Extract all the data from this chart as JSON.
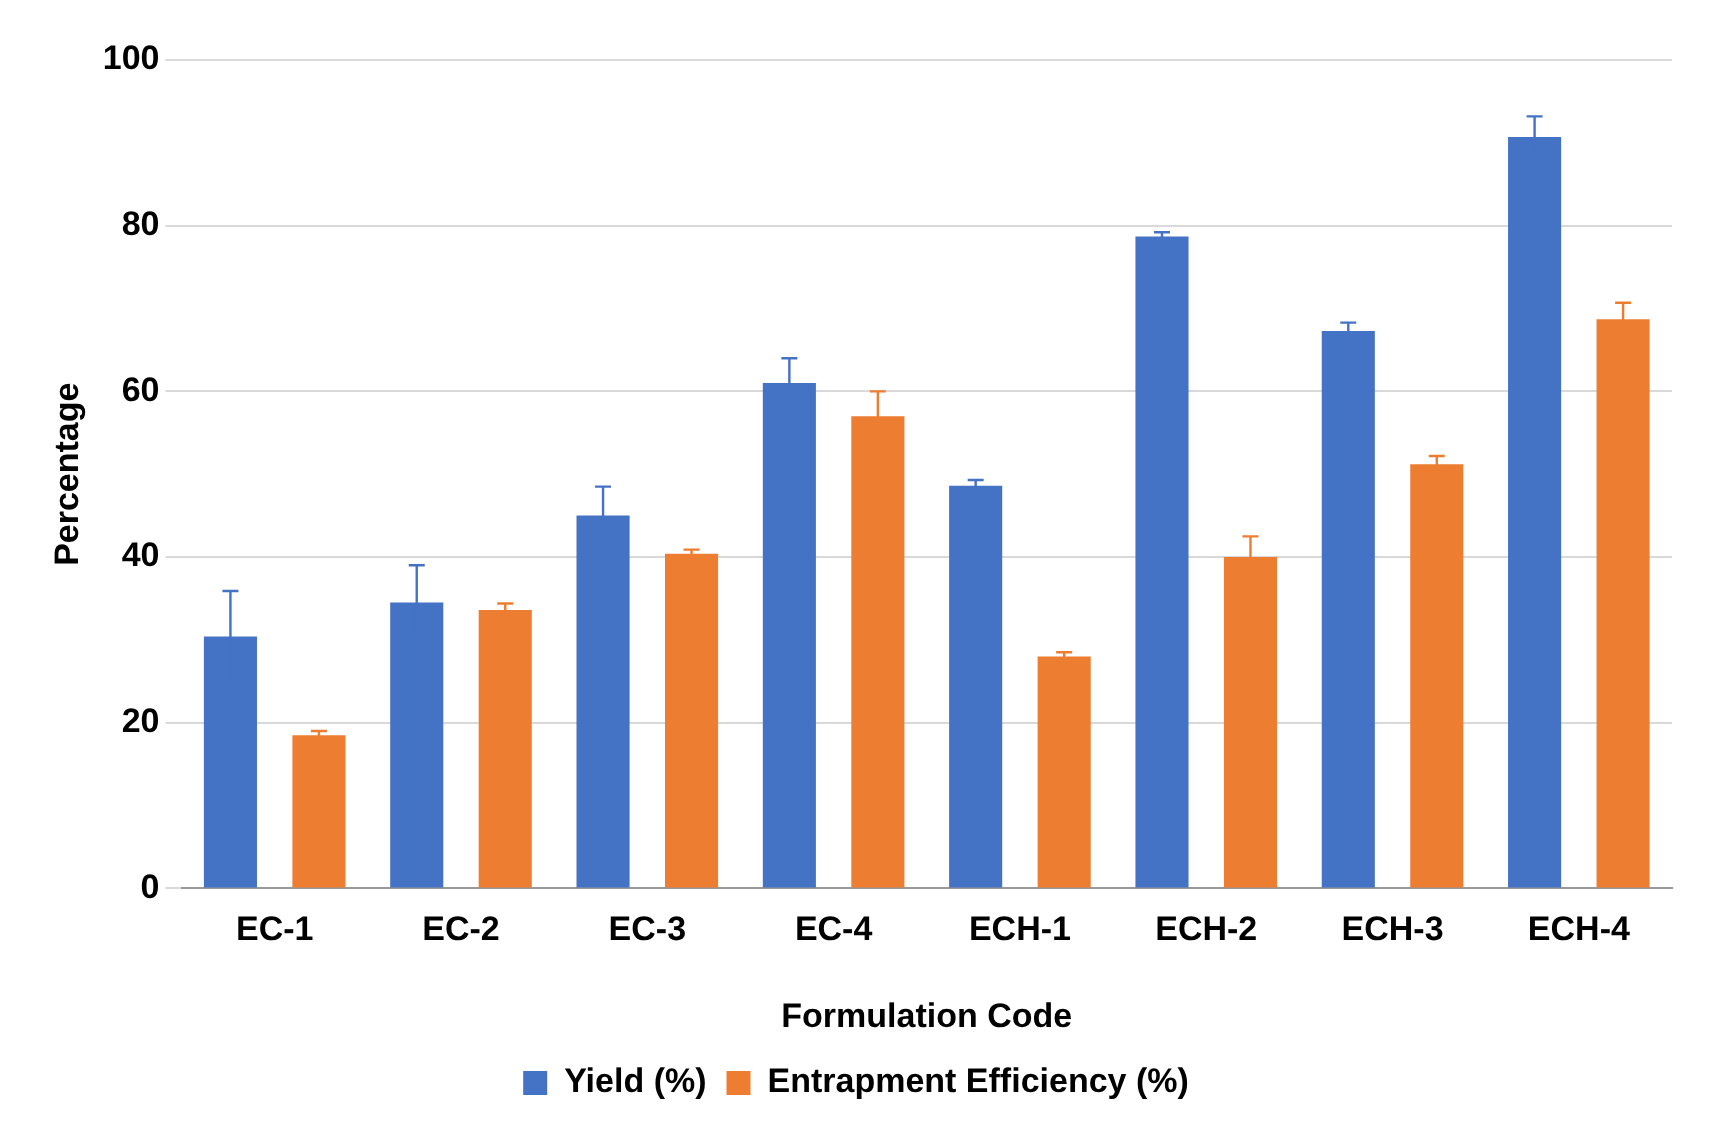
{
  "chart_data": {
    "type": "bar",
    "xlabel": "Formulation Code",
    "ylabel": "Percentage",
    "categories": [
      "EC-1",
      "EC-2",
      "EC-3",
      "EC-4",
      "ECH-1",
      "ECH-2",
      "ECH-3",
      "ECH-4"
    ],
    "series": [
      {
        "name": "Yield (%)",
        "color": "#4472c4",
        "values": [
          30.4,
          34.5,
          45,
          61,
          48.6,
          78.7,
          67.3,
          90.7
        ],
        "errors": [
          5.5,
          4.5,
          3.5,
          3,
          0.7,
          0.5,
          1,
          2.5
        ]
      },
      {
        "name": "Entrapment Efficiency (%)",
        "color": "#ed7d31",
        "values": [
          18.5,
          33.6,
          40.4,
          57,
          28,
          40,
          51.2,
          68.7
        ],
        "errors": [
          0.5,
          0.8,
          0.5,
          3,
          0.5,
          2.5,
          1,
          2
        ]
      }
    ],
    "ylim": [
      0,
      100
    ],
    "yticks": [
      0,
      20,
      40,
      60,
      80,
      100
    ],
    "grid": "y",
    "legend": "bottom"
  }
}
